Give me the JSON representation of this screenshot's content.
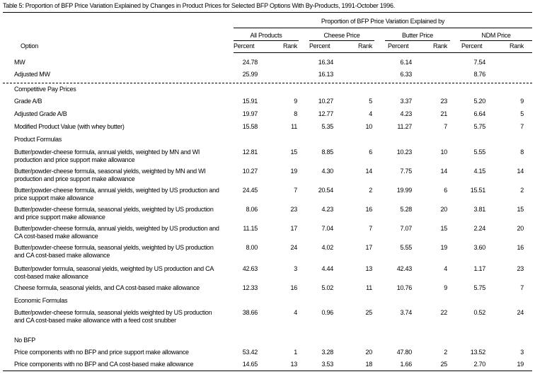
{
  "title": "Table 5: Proportion of BFP Price Variation Explained by Changes in Product Prices for Selected BFP Options With By-Products, 1991-October 1996.",
  "header": {
    "spanner": "Proportion of BFP Price Variation Explained by",
    "groups": [
      "All Products",
      "Cheese Price",
      "Butter Price",
      "NDM Price"
    ],
    "option": "Option",
    "percent": "Percent",
    "rank": "Rank"
  },
  "rows": [
    {
      "type": "data",
      "label": "MW",
      "values": [
        "24.78",
        "",
        "16.34",
        "",
        "6.14",
        "",
        "7.54",
        ""
      ]
    },
    {
      "type": "data",
      "label": "Adjusted MW",
      "values": [
        "25.99",
        "",
        "16.13",
        "",
        "6.33",
        "",
        "8.76",
        ""
      ]
    },
    {
      "type": "section",
      "label": "Competitive Pay Prices"
    },
    {
      "type": "data",
      "label": "Grade A/B",
      "values": [
        "15.91",
        "9",
        "10.27",
        "5",
        "3.37",
        "23",
        "5.20",
        "9"
      ]
    },
    {
      "type": "data",
      "label": "Adjusted Grade A/B",
      "values": [
        "19.97",
        "8",
        "12.77",
        "4",
        "4.23",
        "21",
        "6.64",
        "5"
      ]
    },
    {
      "type": "data",
      "label": "Modified Product Value (with whey butter)",
      "values": [
        "15.58",
        "11",
        "5.35",
        "10",
        "11.27",
        "7",
        "5.75",
        "7"
      ]
    },
    {
      "type": "section",
      "label": "Product Formulas"
    },
    {
      "type": "data",
      "label": "Butter/powder-cheese formula, annual yields, weighted by MN and WI production and price support make allowance",
      "values": [
        "12.81",
        "15",
        "8.85",
        "6",
        "10.23",
        "10",
        "5.55",
        "8"
      ]
    },
    {
      "type": "data",
      "label": "Butter/powder-cheese formula, seasonal yields, weighted by MN and WI production and price support make allowance",
      "values": [
        "10.27",
        "19",
        "4.30",
        "14",
        "7.75",
        "14",
        "4.15",
        "14"
      ]
    },
    {
      "type": "data",
      "label": "Butter/powder-cheese formula, annual yields, weighted by US production and price support make allowance",
      "values": [
        "24.45",
        "7",
        "20.54",
        "2",
        "19.99",
        "6",
        "15.51",
        "2"
      ]
    },
    {
      "type": "data",
      "label": "Butter/powder-cheese formula, seasonal yields, weighted by US production and price support make allowance",
      "values": [
        "8.06",
        "23",
        "4.23",
        "16",
        "5.28",
        "20",
        "3.81",
        "15"
      ]
    },
    {
      "type": "data",
      "label": "Butter/powder-cheese formula, annual yields, weighted by US production and CA cost-based make allowance",
      "values": [
        "11.15",
        "17",
        "7.04",
        "7",
        "7.07",
        "15",
        "2.24",
        "20"
      ]
    },
    {
      "type": "data",
      "label": "Butter/powder-cheese formula, seasonal yields, weighted by US production and CA cost-based make allowance",
      "values": [
        "8.00",
        "24",
        "4.02",
        "17",
        "5.55",
        "19",
        "3.60",
        "16"
      ]
    },
    {
      "type": "data",
      "label": "Butter/powder formula, seasonal yields, weighted by US production and CA cost-based make allowance",
      "values": [
        "42.63",
        "3",
        "4.44",
        "13",
        "42.43",
        "4",
        "1.17",
        "23"
      ]
    },
    {
      "type": "data",
      "label": "Cheese formula, seasonal yields, and CA cost-based make allowance",
      "values": [
        "12.33",
        "16",
        "5.02",
        "11",
        "10.76",
        "9",
        "5.75",
        "7"
      ]
    },
    {
      "type": "section",
      "label": "Economic Formulas"
    },
    {
      "type": "data",
      "label": "Butter/powder-cheese formula, seasonal yields weighted by US production and CA cost-based make allowance with a feed cost snubber",
      "values": [
        "38.66",
        "4",
        "0.96",
        "25",
        "3.74",
        "22",
        "0.52",
        "24"
      ]
    },
    {
      "type": "section",
      "label": "No BFP"
    },
    {
      "type": "data",
      "label": "Price components with no BFP and price support make allowance",
      "values": [
        "53.42",
        "1",
        "3.28",
        "20",
        "47.80",
        "2",
        "13.52",
        "3"
      ]
    },
    {
      "type": "data",
      "label": "Price components with no BFP and CA cost-based make allowance",
      "values": [
        "14.65",
        "13",
        "3.53",
        "18",
        "1.66",
        "25",
        "2.70",
        "19"
      ]
    }
  ]
}
